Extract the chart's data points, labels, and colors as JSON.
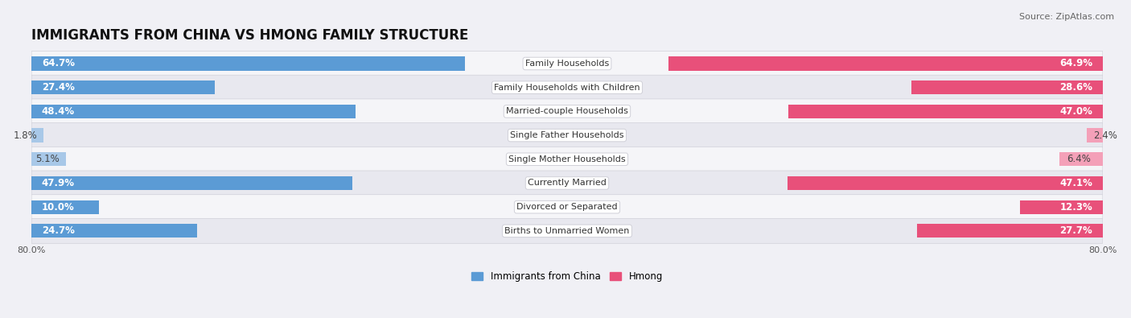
{
  "title": "IMMIGRANTS FROM CHINA VS HMONG FAMILY STRUCTURE",
  "source": "Source: ZipAtlas.com",
  "categories": [
    "Family Households",
    "Family Households with Children",
    "Married-couple Households",
    "Single Father Households",
    "Single Mother Households",
    "Currently Married",
    "Divorced or Separated",
    "Births to Unmarried Women"
  ],
  "china_values": [
    64.7,
    27.4,
    48.4,
    1.8,
    5.1,
    47.9,
    10.0,
    24.7
  ],
  "hmong_values": [
    64.9,
    28.6,
    47.0,
    2.4,
    6.4,
    47.1,
    12.3,
    27.7
  ],
  "china_color_large": "#5b9bd5",
  "china_color_small": "#a8c8e8",
  "hmong_color_large": "#e8507a",
  "hmong_color_small": "#f4a0b8",
  "axis_max": 80.0,
  "bar_height": 0.58,
  "background_color": "#f0f0f5",
  "row_colors": [
    "#f5f5f8",
    "#e8e8ef"
  ],
  "label_box_color": "#ffffff",
  "label_box_border": "#d0d0d8",
  "legend_china": "Immigrants from China",
  "legend_hmong": "Hmong",
  "title_fontsize": 12,
  "source_fontsize": 8,
  "value_fontsize": 8.5,
  "label_fontsize": 8,
  "axis_tick_fontsize": 8,
  "large_threshold": 10
}
